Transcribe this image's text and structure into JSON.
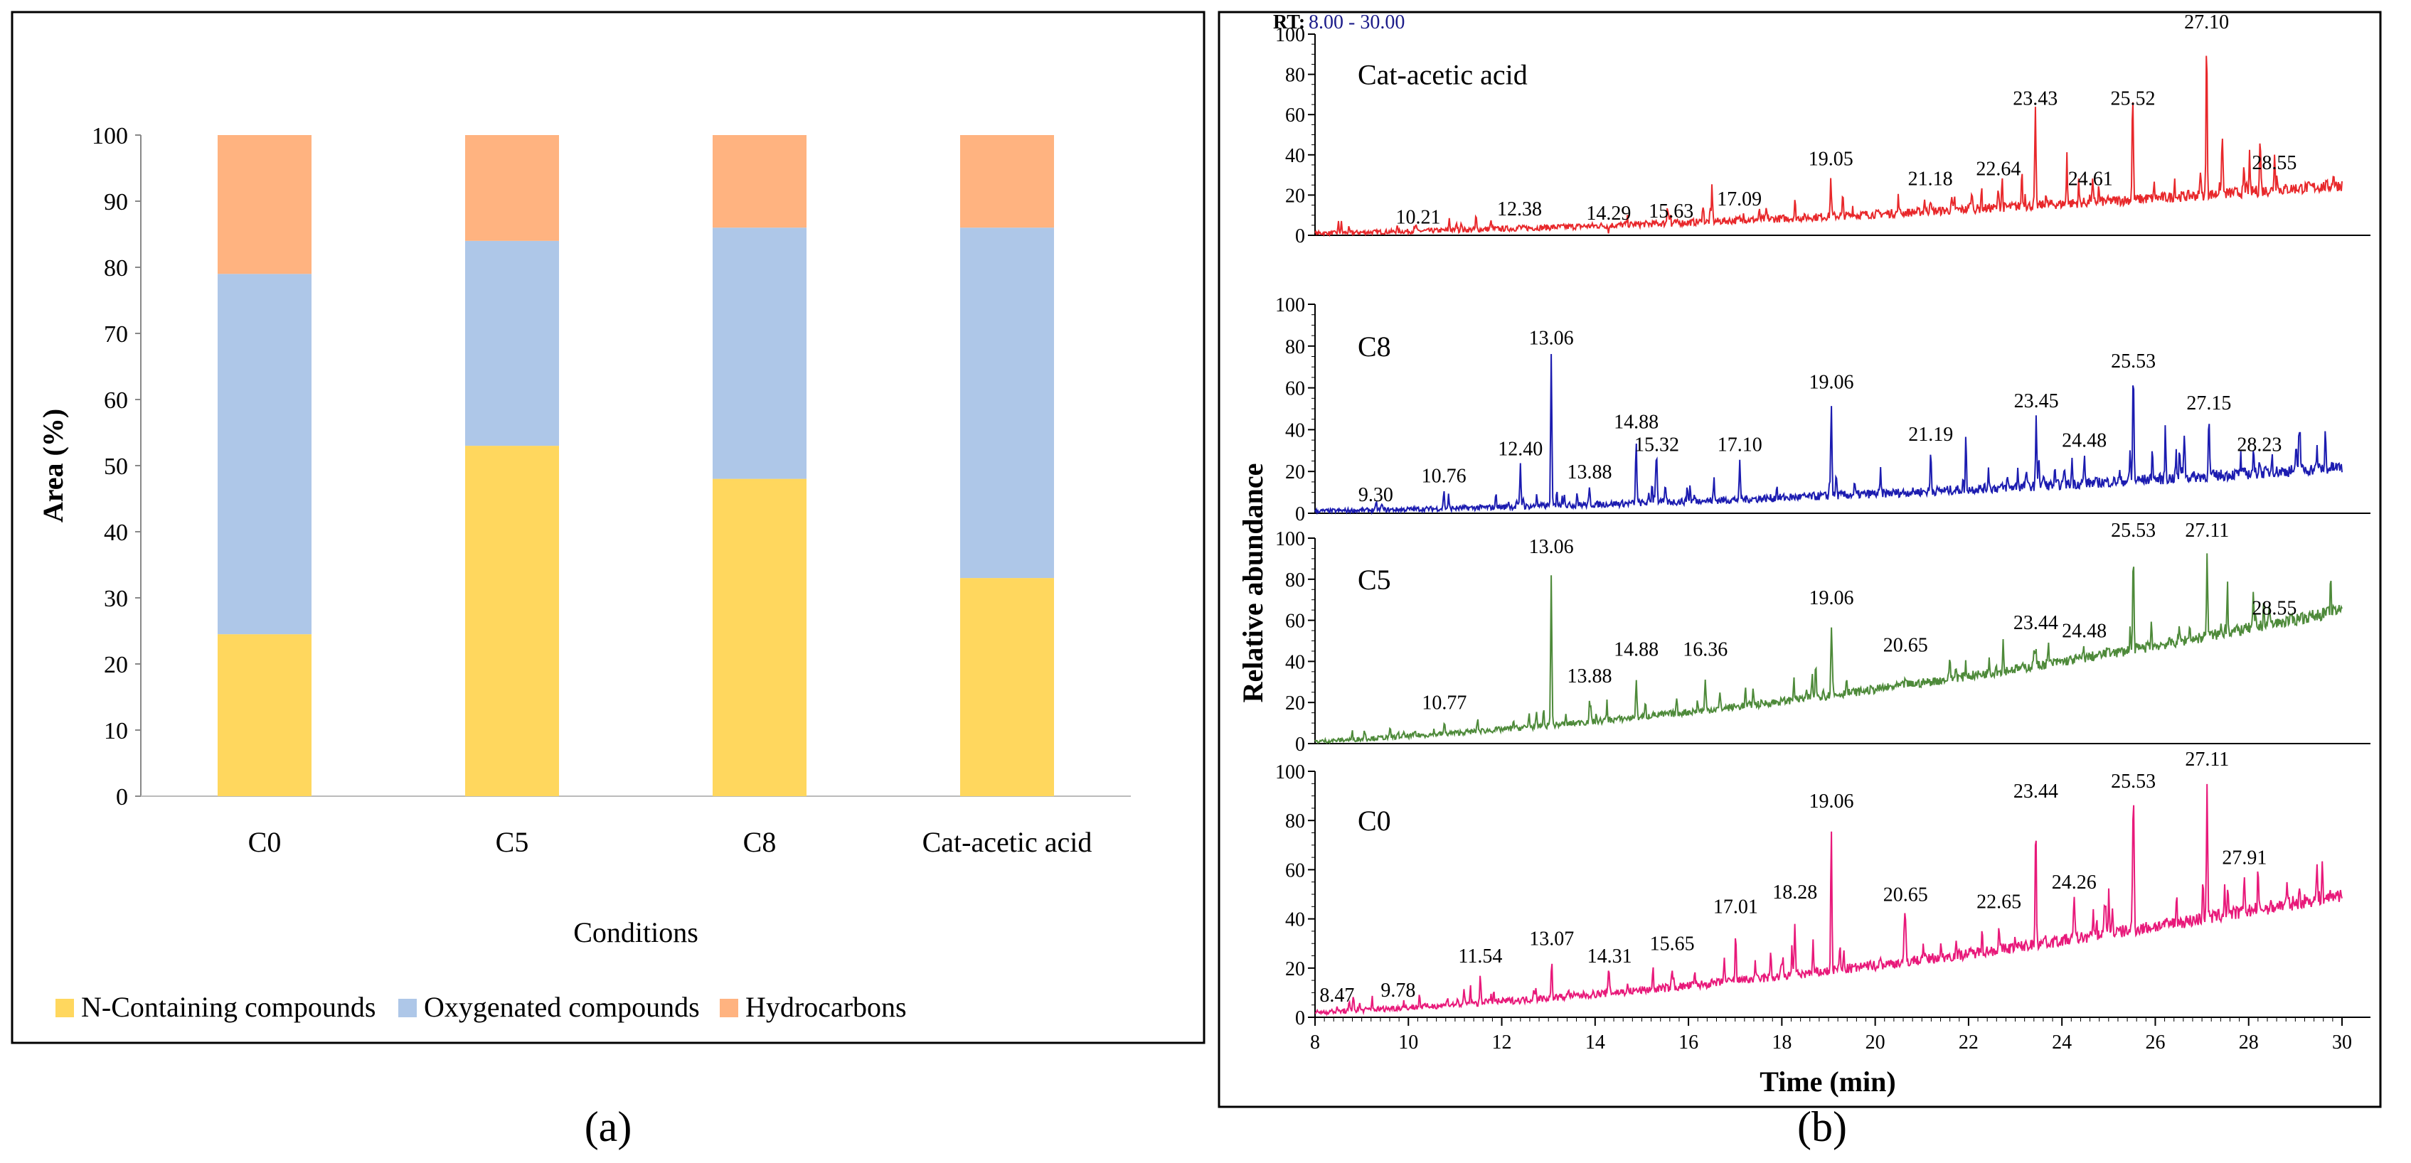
{
  "chart_data": [
    {
      "type": "bar",
      "stacked": true,
      "panel_label": "(a)",
      "categories": [
        "C0",
        "C5",
        "C8",
        "Cat-acetic acid"
      ],
      "series": [
        {
          "name": "N-Containing compounds",
          "color": "#FFD75E",
          "values": [
            24.5,
            53,
            48,
            33
          ]
        },
        {
          "name": "Oxygenated compounds",
          "color": "#AEC7E8",
          "values": [
            54.5,
            31,
            38,
            53
          ]
        },
        {
          "name": "Hydrocarbons",
          "color": "#FFB380",
          "values": [
            21,
            16,
            14,
            14
          ]
        }
      ],
      "xlabel": "Conditions",
      "ylabel": "Area (%)",
      "ylim": [
        0,
        100
      ],
      "yticks": [
        0,
        10,
        20,
        30,
        40,
        50,
        60,
        70,
        80,
        90,
        100
      ],
      "legend": "bottom"
    },
    {
      "type": "line",
      "panel_label": "(b)",
      "rt_label": "RT:",
      "rt_range": "8.00 - 30.00",
      "xlabel": "Time (min)",
      "ylabel": "Relative abundance",
      "xlim": [
        8,
        30
      ],
      "xticks": [
        8,
        10,
        12,
        14,
        16,
        18,
        20,
        22,
        24,
        26,
        28,
        30
      ],
      "ylim": [
        0,
        100
      ],
      "yticks": [
        0,
        20,
        40,
        60,
        80,
        100
      ],
      "series": [
        {
          "name": "Cat-acetic acid",
          "color": "#E8282B",
          "baseline": [
            1,
            25
          ],
          "peaks": [
            [
              10.21,
              3,
              "10.21"
            ],
            [
              12.38,
              7,
              "12.38"
            ],
            [
              14.29,
              5,
              "14.29"
            ],
            [
              15.63,
              6,
              "15.63"
            ],
            [
              17.09,
              12,
              "17.09"
            ],
            [
              19.05,
              32,
              "19.05"
            ],
            [
              21.18,
              22,
              "21.18"
            ],
            [
              22.64,
              27,
              "22.64"
            ],
            [
              23.43,
              62,
              "23.43"
            ],
            [
              24.61,
              22,
              "24.61"
            ],
            [
              25.52,
              62,
              "25.52"
            ],
            [
              27.1,
              100,
              "27.10"
            ],
            [
              28.55,
              30,
              "28.55"
            ]
          ]
        },
        {
          "name": "C8",
          "color": "#1C1CB0",
          "baseline": [
            1,
            22
          ],
          "peaks": [
            [
              9.3,
              3,
              "9.30"
            ],
            [
              10.76,
              12,
              "10.76"
            ],
            [
              12.4,
              25,
              "12.40"
            ],
            [
              13.06,
              78,
              "13.06"
            ],
            [
              13.88,
              14,
              "13.88"
            ],
            [
              14.88,
              38,
              "14.88"
            ],
            [
              15.32,
              27,
              "15.32"
            ],
            [
              17.1,
              27,
              "17.10"
            ],
            [
              19.06,
              57,
              "19.06"
            ],
            [
              21.19,
              32,
              "21.19"
            ],
            [
              23.45,
              48,
              "23.45"
            ],
            [
              24.48,
              29,
              "24.48"
            ],
            [
              25.53,
              67,
              "25.53"
            ],
            [
              27.15,
              47,
              "27.15"
            ],
            [
              28.23,
              27,
              "28.23"
            ]
          ]
        },
        {
          "name": "C5",
          "color": "#4E8A3A",
          "baseline": [
            1,
            65
          ],
          "peaks": [
            [
              10.77,
              14,
              "10.77"
            ],
            [
              13.06,
              90,
              "13.06"
            ],
            [
              13.88,
              27,
              "13.88"
            ],
            [
              14.88,
              40,
              "14.88"
            ],
            [
              16.36,
              40,
              "16.36"
            ],
            [
              19.06,
              65,
              "19.06"
            ],
            [
              20.65,
              42,
              "20.65"
            ],
            [
              23.44,
              53,
              "23.44"
            ],
            [
              24.48,
              49,
              "24.48"
            ],
            [
              25.53,
              98,
              "25.53"
            ],
            [
              27.11,
              98,
              "27.11"
            ],
            [
              28.55,
              60,
              "28.55"
            ]
          ]
        },
        {
          "name": "C0",
          "color": "#E8197A",
          "baseline": [
            2,
            50
          ],
          "peaks": [
            [
              8.47,
              4,
              "8.47"
            ],
            [
              9.78,
              6,
              "9.78"
            ],
            [
              11.54,
              20,
              "11.54"
            ],
            [
              13.07,
              27,
              "13.07"
            ],
            [
              14.31,
              20,
              "14.31"
            ],
            [
              15.65,
              25,
              "15.65"
            ],
            [
              17.01,
              40,
              "17.01"
            ],
            [
              18.28,
              46,
              "18.28"
            ],
            [
              19.06,
              83,
              "19.06"
            ],
            [
              20.65,
              45,
              "20.65"
            ],
            [
              22.65,
              42,
              "22.65"
            ],
            [
              23.44,
              87,
              "23.44"
            ],
            [
              24.26,
              50,
              "24.26"
            ],
            [
              25.53,
              91,
              "25.53"
            ],
            [
              27.11,
              100,
              "27.11"
            ],
            [
              27.91,
              60,
              "27.91"
            ]
          ]
        }
      ]
    }
  ]
}
